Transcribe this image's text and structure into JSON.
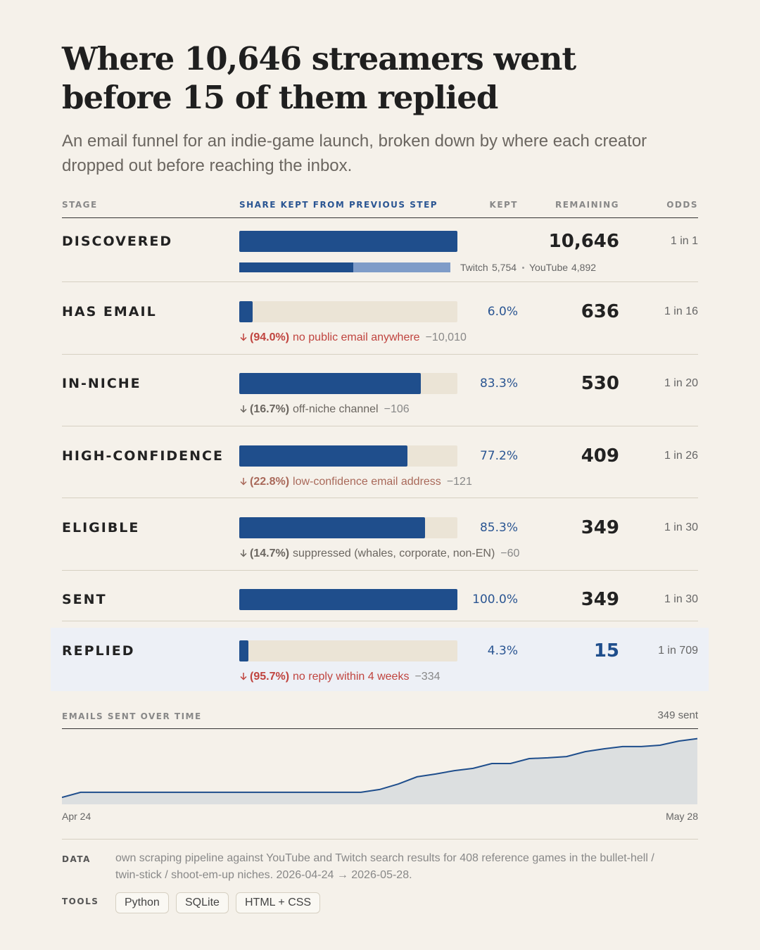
{
  "header": {
    "title": "Where 10,646 streamers went before 15 of them replied",
    "subtitle": "An email funnel for an indie-game launch, broken down by where each creator dropped out before reaching the inbox."
  },
  "funnel": {
    "columns": [
      "STAGE",
      "SHARE KEPT FROM PREVIOUS STEP",
      "KEPT",
      "REMAINING",
      "ODDS"
    ],
    "xlim": [
      0,
      100
    ],
    "bar_color": "#1f4e8c",
    "track_color": "#ebe4d6",
    "rows": [
      {
        "stage": "DISCOVERED",
        "kept": 100,
        "remaining": "10,646",
        "odds": "1 in 1",
        "breakdown": [
          {
            "name": "Twitch",
            "value": 5754,
            "label": "5,754",
            "color": "#1f4e8c"
          },
          {
            "name": "YouTube",
            "value": 4892,
            "label": "4,892",
            "color": "#7f9cc8"
          }
        ]
      },
      {
        "stage": "HAS EMAIL",
        "kept": 6.0,
        "kept_label": "6.0%",
        "remaining": "636",
        "odds": "1 in 16",
        "drop": {
          "pct": "(94.0%)",
          "reason": "no public email anywhere",
          "count": "−10,010",
          "color": "#c0443f"
        }
      },
      {
        "stage": "IN-NICHE",
        "kept": 83.3,
        "kept_label": "83.3%",
        "remaining": "530",
        "odds": "1 in 20",
        "drop": {
          "pct": "(16.7%)",
          "reason": "off-niche channel",
          "count": "−106",
          "color": "#6b6660"
        }
      },
      {
        "stage": "HIGH-CONFIDENCE",
        "kept": 77.2,
        "kept_label": "77.2%",
        "remaining": "409",
        "odds": "1 in 26",
        "drop": {
          "pct": "(22.8%)",
          "reason": "low-confidence email address",
          "count": "−121",
          "color": "#a9695a"
        }
      },
      {
        "stage": "ELIGIBLE",
        "kept": 85.3,
        "kept_label": "85.3%",
        "remaining": "349",
        "odds": "1 in 30",
        "drop": {
          "pct": "(14.7%)",
          "reason": "suppressed (whales, corporate, non-EN)",
          "count": "−60",
          "color": "#6b6660"
        }
      },
      {
        "stage": "SENT",
        "kept": 100.0,
        "kept_label": "100.0%",
        "remaining": "349",
        "odds": "1 in 30"
      },
      {
        "stage": "REPLIED",
        "kept": 4.3,
        "kept_label": "4.3%",
        "remaining": "15",
        "odds": "1 in 709",
        "highlight": true,
        "drop": {
          "pct": "(95.7%)",
          "reason": "no reply within 4 weeks",
          "count": "−334",
          "color": "#c0443f"
        }
      }
    ]
  },
  "chart_data": {
    "type": "area",
    "title": "EMAILS SENT OVER TIME",
    "total_label": "349 sent",
    "categories": [
      "Apr 24",
      null,
      null,
      null,
      null,
      null,
      null,
      null,
      null,
      null,
      null,
      null,
      null,
      null,
      null,
      null,
      null,
      null,
      null,
      null,
      null,
      null,
      null,
      null,
      null,
      null,
      null,
      null,
      null,
      null,
      null,
      null,
      null,
      null,
      "May 28"
    ],
    "values": [
      37,
      64,
      64,
      64,
      64,
      64,
      64,
      64,
      64,
      64,
      64,
      64,
      64,
      64,
      64,
      64,
      64,
      79,
      108,
      146,
      161,
      179,
      191,
      217,
      217,
      243,
      247,
      254,
      280,
      295,
      307,
      307,
      314,
      336,
      349
    ],
    "ylim": [
      0,
      400
    ],
    "color": "#1f4e8c",
    "fill": "#dcdfe0"
  },
  "footer": {
    "data_label": "DATA",
    "data_text": "own scraping pipeline against YouTube and Twitch search results for 408 reference games in the bullet-hell / twin-stick / shoot-em-up niches. 2026-04-24 → 2026-05-28.",
    "tools_label": "TOOLS",
    "tools": [
      "Python",
      "SQLite",
      "HTML + CSS"
    ]
  }
}
